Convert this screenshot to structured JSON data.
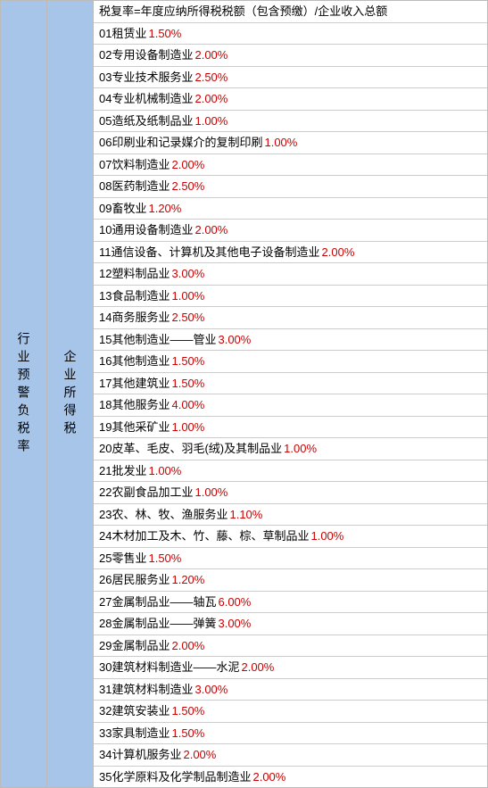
{
  "leftLabel": "行业预警负税率",
  "middleLabel": "企业所得税",
  "headerText": "税复率=年度应纳所得税税额（包含预缴）/企业收入总额",
  "rows": [
    {
      "num": "01",
      "name": "租赁业",
      "rate": "1.50%"
    },
    {
      "num": "02",
      "name": "专用设备制造业",
      "rate": "2.00%"
    },
    {
      "num": "03",
      "name": "专业技术服务业",
      "rate": "2.50%"
    },
    {
      "num": "04",
      "name": "专业机械制造业",
      "rate": "2.00%"
    },
    {
      "num": "05",
      "name": "造纸及纸制品业",
      "rate": "1.00%"
    },
    {
      "num": "06",
      "name": "印刷业和记录媒介的复制印刷",
      "rate": "1.00%"
    },
    {
      "num": "07",
      "name": "饮料制造业",
      "rate": "2.00%"
    },
    {
      "num": "08",
      "name": "医药制造业",
      "rate": "2.50%"
    },
    {
      "num": "09",
      "name": "畜牧业",
      "rate": "1.20%"
    },
    {
      "num": "10",
      "name": "通用设备制造业",
      "rate": "2.00%"
    },
    {
      "num": "11",
      "name": "通信设备、计算机及其他电子设备制造业",
      "rate": "2.00%"
    },
    {
      "num": "12",
      "name": "塑料制品业",
      "rate": "3.00%"
    },
    {
      "num": "13",
      "name": "食品制造业",
      "rate": "1.00%"
    },
    {
      "num": "14",
      "name": "商务服务业",
      "rate": "2.50%"
    },
    {
      "num": "15",
      "name": "其他制造业——管业",
      "rate": "3.00%"
    },
    {
      "num": "16",
      "name": "其他制造业",
      "rate": "1.50%"
    },
    {
      "num": "17",
      "name": "其他建筑业",
      "rate": "1.50%"
    },
    {
      "num": "18",
      "name": "其他服务业",
      "rate": "4.00%"
    },
    {
      "num": "19",
      "name": "其他采矿业",
      "rate": "1.00%"
    },
    {
      "num": "20",
      "name": "皮革、毛皮、羽毛(绒)及其制品业",
      "rate": "1.00%"
    },
    {
      "num": "21",
      "name": "批发业",
      "rate": "1.00%"
    },
    {
      "num": "22",
      "name": "农副食品加工业",
      "rate": "1.00%"
    },
    {
      "num": "23",
      "name": "农、林、牧、渔服务业",
      "rate": "1.10%"
    },
    {
      "num": "24",
      "name": "木材加工及木、竹、藤、棕、草制品业",
      "rate": "1.00%"
    },
    {
      "num": "25",
      "name": "零售业",
      "rate": "1.50%"
    },
    {
      "num": "26",
      "name": "居民服务业",
      "rate": "1.20%"
    },
    {
      "num": "27",
      "name": "金属制品业——轴瓦",
      "rate": "6.00%"
    },
    {
      "num": "28",
      "name": "金属制品业——弹簧",
      "rate": "3.00%"
    },
    {
      "num": "29",
      "name": "金属制品业",
      "rate": "2.00%"
    },
    {
      "num": "30",
      "name": "建筑材料制造业——水泥",
      "rate": "2.00%"
    },
    {
      "num": "31",
      "name": "建筑材料制造业",
      "rate": "3.00%"
    },
    {
      "num": "32",
      "name": "建筑安装业",
      "rate": "1.50%"
    },
    {
      "num": "33",
      "name": "家具制造业",
      "rate": "1.50%"
    },
    {
      "num": "34",
      "name": "计算机服务业",
      "rate": "2.00%"
    },
    {
      "num": "35",
      "name": "化学原料及化学制品制造业",
      "rate": "2.00%"
    }
  ],
  "colors": {
    "sidebarBg": "#a7c5e8",
    "rateColor": "#cc0000",
    "borderColor": "#cccccc",
    "textColor": "#000000"
  }
}
